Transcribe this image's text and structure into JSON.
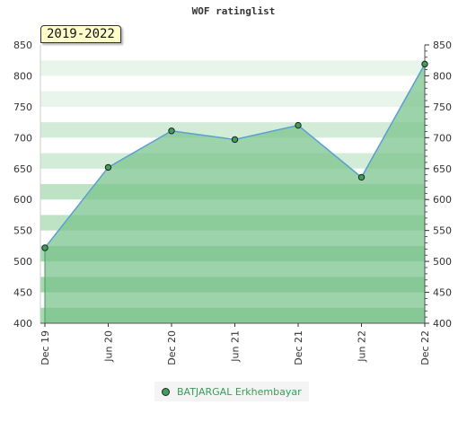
{
  "title": "WOF ratinglist",
  "badge": "2019-2022",
  "colors": {
    "line": "#5a9fd4",
    "fill": "#7cc48e",
    "marker": "#3f9e5a",
    "legend_text": "#3a9b57"
  },
  "chart_data": {
    "type": "area",
    "title": "WOF ratinglist",
    "xlabel": "",
    "ylabel": "",
    "ylim": [
      400,
      850
    ],
    "yticks": [
      400,
      450,
      500,
      550,
      600,
      650,
      700,
      750,
      800,
      850
    ],
    "xticks": [
      "Dec 19",
      "Jun 20",
      "Dec 20",
      "Jun 21",
      "Dec 21",
      "Jun 22",
      "Dec 22"
    ],
    "grid": "horizontal bands",
    "legend_position": "bottom-center",
    "series": [
      {
        "name": "BATJARGAL Erkhembayar",
        "x": [
          "Dec 19",
          "Jun 20",
          "Dec 20",
          "Jun 21",
          "Dec 21",
          "Jun 22",
          "Dec 22"
        ],
        "values": [
          522,
          652,
          711,
          697,
          720,
          636,
          819
        ]
      }
    ]
  }
}
